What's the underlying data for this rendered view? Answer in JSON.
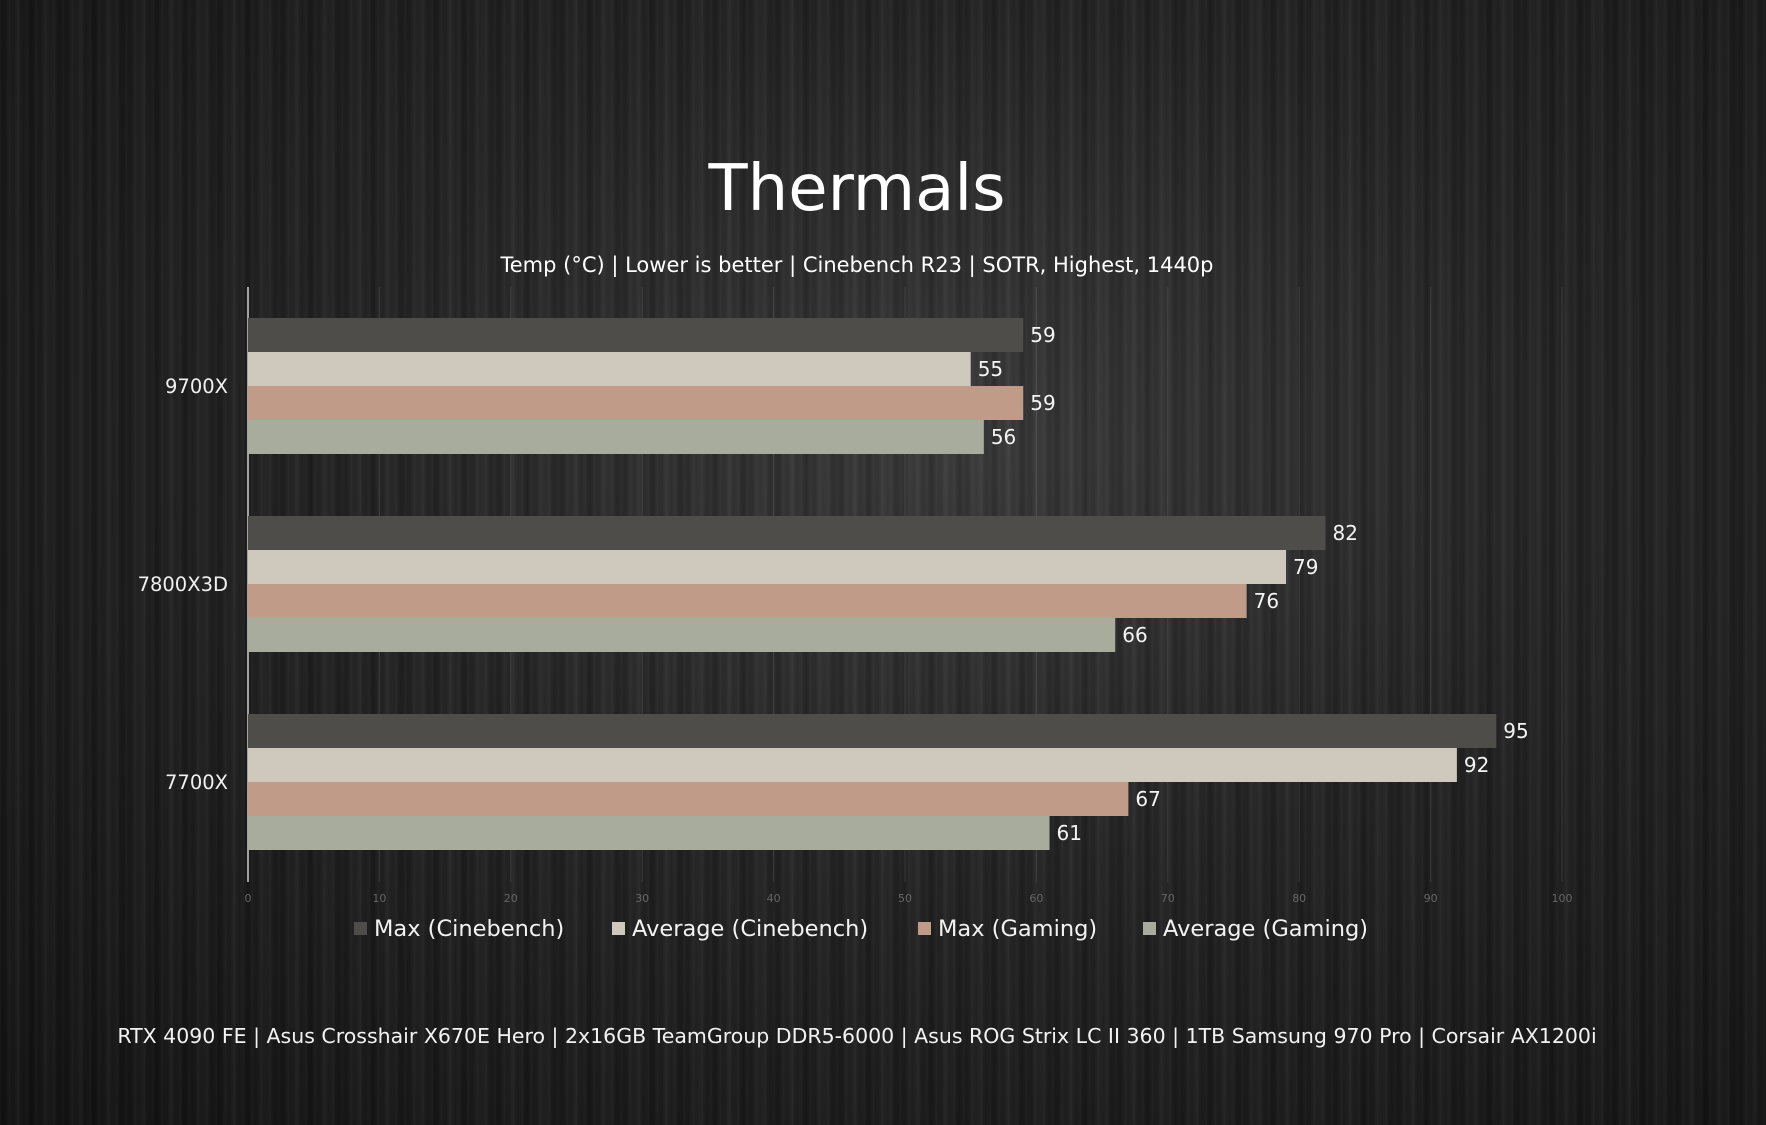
{
  "chart_data": {
    "type": "bar",
    "orientation": "horizontal",
    "title": "Thermals",
    "subtitle": "Temp (°C) | Lower is better | Cinebench R23 | SOTR, Highest, 1440p",
    "footer": "RTX 4090 FE | Asus Crosshair X670E Hero | 2x16GB TeamGroup DDR5-6000 | Asus ROG Strix LC II 360 | 1TB Samsung 970 Pro | Corsair AX1200i",
    "categories": [
      "9700X",
      "7800X3D",
      "7700X"
    ],
    "series": [
      {
        "name": "Max (Cinebench)",
        "color": "#4e4d4a",
        "values": [
          59,
          82,
          95
        ]
      },
      {
        "name": "Average (Cinebench)",
        "color": "#cfc8bd",
        "values": [
          55,
          79,
          92
        ]
      },
      {
        "name": "Max (Gaming)",
        "color": "#c09c88",
        "values": [
          59,
          76,
          67
        ]
      },
      {
        "name": "Average (Gaming)",
        "color": "#a7ac9c",
        "values": [
          56,
          66,
          61
        ]
      }
    ],
    "xlim": [
      0,
      100
    ],
    "xticks": [
      0,
      10,
      20,
      30,
      40,
      50,
      60,
      70,
      80,
      90,
      100
    ],
    "grid": true,
    "legend_position": "bottom"
  }
}
